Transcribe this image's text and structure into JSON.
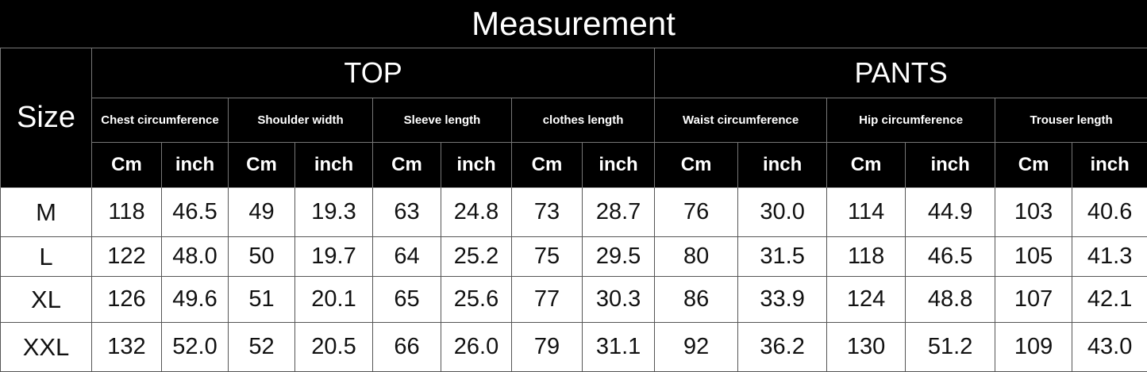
{
  "title": "Measurement",
  "size_label": "Size",
  "groups": {
    "top": "TOP",
    "pants": "PANTS"
  },
  "measures": [
    "Chest circumference",
    "Shoulder width",
    "Sleeve  length",
    "clothes length",
    "Waist circumference",
    "Hip circumference",
    "Trouser length"
  ],
  "units": {
    "cm": "Cm",
    "inch": "inch"
  },
  "rows": [
    {
      "size": "M",
      "values": [
        "118",
        "46.5",
        "49",
        "19.3",
        "63",
        "24.8",
        "73",
        "28.7",
        "76",
        "30.0",
        "114",
        "44.9",
        "103",
        "40.6"
      ]
    },
    {
      "size": "L",
      "values": [
        "122",
        "48.0",
        "50",
        "19.7",
        "64",
        "25.2",
        "75",
        "29.5",
        "80",
        "31.5",
        "118",
        "46.5",
        "105",
        "41.3"
      ]
    },
    {
      "size": "XL",
      "values": [
        "126",
        "49.6",
        "51",
        "20.1",
        "65",
        "25.6",
        "77",
        "30.3",
        "86",
        "33.9",
        "124",
        "48.8",
        "107",
        "42.1"
      ]
    },
    {
      "size": "XXL",
      "values": [
        "132",
        "52.0",
        "52",
        "20.5",
        "66",
        "26.0",
        "79",
        "31.1",
        "92",
        "36.2",
        "130",
        "51.2",
        "109",
        "43.0"
      ]
    }
  ]
}
